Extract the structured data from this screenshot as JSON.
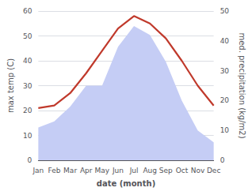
{
  "chart_data": {
    "type": "line",
    "categories": [
      "Jan",
      "Feb",
      "Mar",
      "Apr",
      "May",
      "Jun",
      "Jul",
      "Aug",
      "Sep",
      "Oct",
      "Nov",
      "Dec"
    ],
    "series": [
      {
        "type": "area",
        "color": "#c5cdf5",
        "axis": "y2",
        "values": [
          11,
          13,
          18,
          25,
          25,
          38,
          45,
          42,
          33,
          20,
          10,
          6
        ]
      },
      {
        "type": "line",
        "color": "#c0392b",
        "values": [
          21,
          22,
          27,
          35,
          44,
          53,
          58,
          55,
          49,
          40,
          30,
          22
        ]
      }
    ],
    "xlabel": "date (month)",
    "ylabel": "max temp (C)",
    "y2label": "med. precipitation (kg/m2)",
    "ylim": [
      0,
      60
    ],
    "yticks": [
      0,
      10,
      20,
      30,
      40,
      50,
      60
    ],
    "y2lim": [
      0,
      50
    ],
    "y2ticks": [
      0,
      10,
      20,
      30,
      40,
      50
    ],
    "grid": true
  }
}
